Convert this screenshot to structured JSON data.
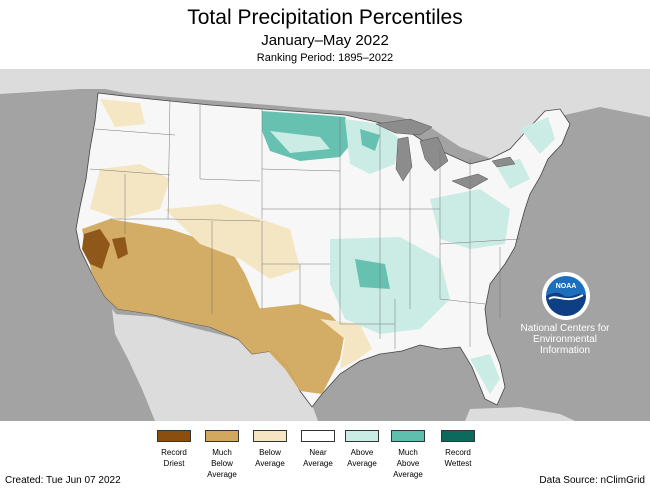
{
  "title": "Total Precipitation Percentiles",
  "subtitle": "January–May 2022",
  "ranking_period": "Ranking Period: 1895–2022",
  "created": "Created: Tue Jun 07 2022",
  "data_source": "Data Source: nClimGrid",
  "logo": {
    "text": "NOAA",
    "org_lines": [
      "National Centers for",
      "Environmental",
      "Information"
    ]
  },
  "colors": {
    "record_driest": "#8a4f0e",
    "much_below": "#d2a85e",
    "below": "#f4e6c0",
    "near": "#ffffff",
    "above": "#c9ece4",
    "much_above": "#5fbfae",
    "record_wettest": "#0b6a5c",
    "ocean": "#a3a3a3",
    "land_outside": "#dcdcdc",
    "lakes": "#8c8c8c"
  },
  "legend": [
    {
      "lines": [
        "Record",
        "Driest"
      ],
      "color_key": "record_driest"
    },
    {
      "lines": [
        "Much",
        "Below",
        "Average"
      ],
      "color_key": "much_below"
    },
    {
      "lines": [
        "Below",
        "Average"
      ],
      "color_key": "below"
    },
    {
      "lines": [
        "Near",
        "Average"
      ],
      "color_key": "near"
    },
    {
      "lines": [
        "Above",
        "Average"
      ],
      "color_key": "above"
    },
    {
      "lines": [
        "Much",
        "Above",
        "Average"
      ],
      "color_key": "much_above"
    },
    {
      "lines": [
        "Record",
        "Wettest"
      ],
      "color_key": "record_wettest"
    }
  ]
}
